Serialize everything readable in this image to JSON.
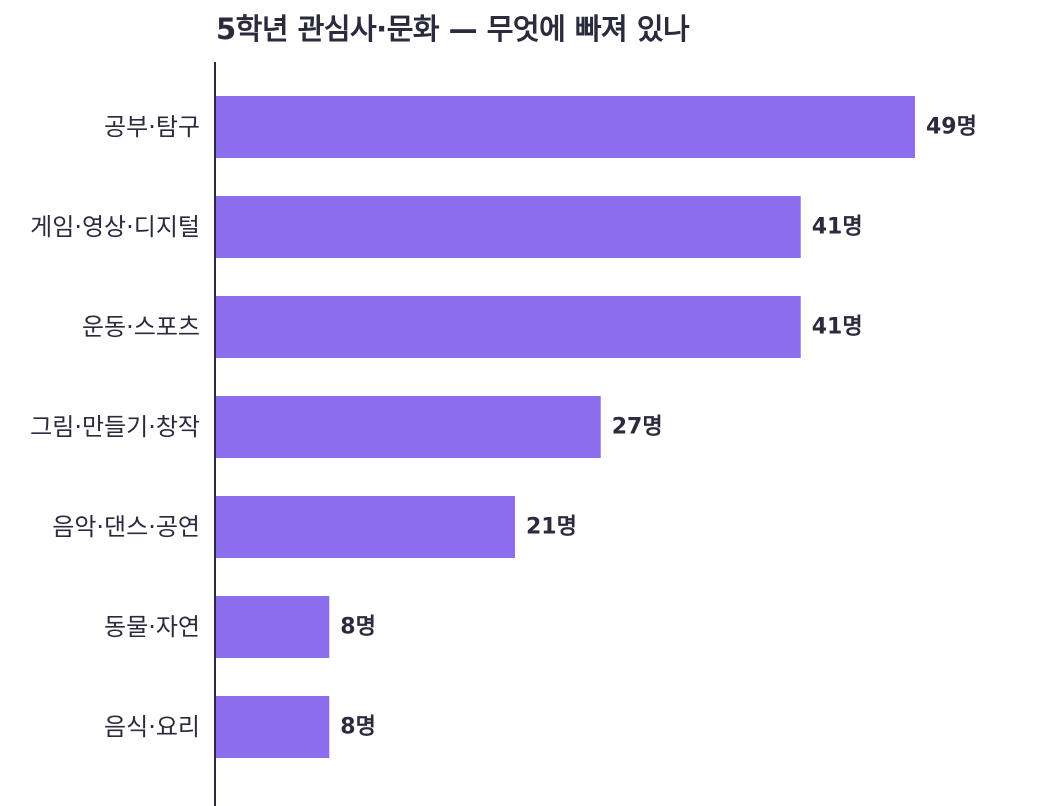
{
  "chart_data": {
    "type": "bar",
    "orientation": "horizontal",
    "title": "5학년 관심사·문화 — 무엇에 빠져 있나",
    "categories": [
      "공부·탐구",
      "게임·영상·디지털",
      "운동·스포츠",
      "그림·만들기·창작",
      "음악·댄스·공연",
      "동물·자연",
      "음식·요리"
    ],
    "values": [
      49,
      41,
      41,
      27,
      21,
      8,
      8
    ],
    "value_suffix": "명",
    "xlim": [
      0,
      55
    ],
    "grid": false,
    "bar_color": "#8b6ded",
    "text_color": "#2b2b3d",
    "axis_color": "#2b2b3d"
  }
}
